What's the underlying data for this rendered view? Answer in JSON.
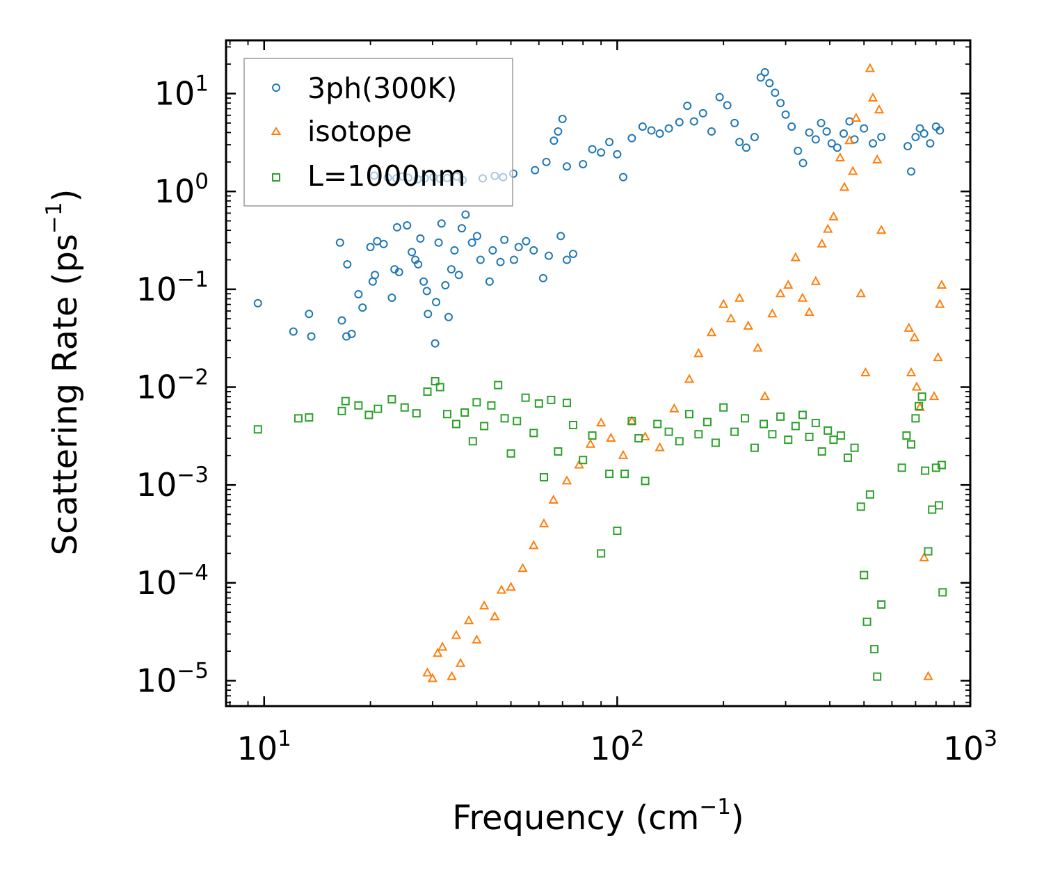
{
  "chart_data": {
    "type": "scatter",
    "xscale": "log",
    "yscale": "log",
    "xlim": [
      7.8,
      1000
    ],
    "ylim": [
      5.5e-06,
      35
    ],
    "xlabel": {
      "text": "Frequency (cm",
      "sup": "−1",
      "close": ")"
    },
    "ylabel": {
      "text": "Scattering Rate (ps",
      "sup": "−1",
      "close": ")"
    },
    "xticks": [
      {
        "value": 10,
        "base": "10",
        "exp": "1"
      },
      {
        "value": 100,
        "base": "10",
        "exp": "2"
      },
      {
        "value": 1000,
        "base": "10",
        "exp": "3"
      }
    ],
    "yticks": [
      {
        "value": 10,
        "base": "10",
        "exp": "1"
      },
      {
        "value": 1,
        "base": "10",
        "exp": "0"
      },
      {
        "value": 0.1,
        "base": "10",
        "exp": "−1"
      },
      {
        "value": 0.01,
        "base": "10",
        "exp": "−2"
      },
      {
        "value": 0.001,
        "base": "10",
        "exp": "−3"
      },
      {
        "value": 0.0001,
        "base": "10",
        "exp": "−4"
      },
      {
        "value": 1e-05,
        "base": "10",
        "exp": "−5"
      }
    ],
    "legend": {
      "position": "upper-left"
    },
    "series": [
      {
        "name": "3ph(300K)",
        "marker": "circle",
        "color": "#1f77b4",
        "points": [
          [
            9.6,
            0.072
          ],
          [
            12.1,
            0.037
          ],
          [
            13.4,
            0.056
          ],
          [
            13.6,
            0.033
          ],
          [
            16.6,
            0.048
          ],
          [
            16.4,
            0.3
          ],
          [
            17.2,
            0.18
          ],
          [
            17.1,
            0.033
          ],
          [
            17.7,
            0.035
          ],
          [
            18.5,
            0.089
          ],
          [
            19.0,
            0.065
          ],
          [
            20.0,
            0.27
          ],
          [
            20.3,
            0.12
          ],
          [
            20.6,
            0.14
          ],
          [
            20.9,
            0.31
          ],
          [
            21.8,
            0.29
          ],
          [
            23.0,
            0.082
          ],
          [
            23.4,
            0.16
          ],
          [
            24.1,
            0.15
          ],
          [
            23.8,
            0.43
          ],
          [
            25.4,
            0.45
          ],
          [
            26.2,
            0.24
          ],
          [
            26.8,
            0.2
          ],
          [
            27.3,
            0.18
          ],
          [
            27.7,
            0.33
          ],
          [
            28.3,
            0.12
          ],
          [
            28.9,
            0.096
          ],
          [
            29.1,
            0.056
          ],
          [
            30.5,
            0.028
          ],
          [
            30.7,
            0.074
          ],
          [
            31.2,
            0.3
          ],
          [
            31.8,
            0.47
          ],
          [
            32.6,
            0.11
          ],
          [
            33.3,
            0.052
          ],
          [
            33.9,
            0.16
          ],
          [
            34.6,
            0.25
          ],
          [
            35.6,
            0.14
          ],
          [
            36.3,
            0.42
          ],
          [
            37.2,
            0.58
          ],
          [
            38.8,
            0.3
          ],
          [
            40.1,
            0.35
          ],
          [
            41.0,
            0.2
          ],
          [
            43.5,
            0.12
          ],
          [
            44.4,
            0.25
          ],
          [
            46.7,
            0.19
          ],
          [
            47.9,
            0.32
          ],
          [
            51.0,
            0.2
          ],
          [
            52.6,
            0.27
          ],
          [
            55.2,
            0.31
          ],
          [
            58.0,
            0.25
          ],
          [
            61.7,
            0.13
          ],
          [
            64.0,
            0.22
          ],
          [
            69.2,
            0.35
          ],
          [
            72.0,
            0.2
          ],
          [
            75.0,
            0.23
          ],
          [
            20.5,
            1.45
          ],
          [
            22.4,
            1.38
          ],
          [
            23.7,
            1.36
          ],
          [
            24.6,
            1.42
          ],
          [
            25.6,
            1.38
          ],
          [
            27.2,
            1.33
          ],
          [
            28.5,
            1.36
          ],
          [
            30.2,
            1.4
          ],
          [
            31.5,
            1.35
          ],
          [
            33.0,
            1.37
          ],
          [
            35.1,
            1.42
          ],
          [
            36.5,
            1.31
          ],
          [
            41.6,
            1.36
          ],
          [
            45.0,
            1.44
          ],
          [
            47.5,
            1.4
          ],
          [
            50.8,
            1.52
          ],
          [
            58.5,
            1.65
          ],
          [
            63.0,
            2.0
          ],
          [
            66.2,
            3.3
          ],
          [
            68.0,
            4.1
          ],
          [
            70.0,
            5.5
          ],
          [
            72.0,
            1.8
          ],
          [
            80.0,
            1.9
          ],
          [
            85.0,
            2.7
          ],
          [
            90.0,
            2.5
          ],
          [
            95.0,
            3.2
          ],
          [
            100.0,
            2.4
          ],
          [
            104.0,
            1.4
          ],
          [
            110.0,
            3.5
          ],
          [
            118.0,
            4.6
          ],
          [
            125.0,
            4.2
          ],
          [
            132.0,
            3.9
          ],
          [
            140.0,
            4.4
          ],
          [
            150.0,
            5.1
          ],
          [
            158.0,
            7.5
          ],
          [
            165.0,
            5.2
          ],
          [
            175.0,
            6.3
          ],
          [
            185.0,
            4.1
          ],
          [
            195.0,
            9.2
          ],
          [
            205.0,
            7.6
          ],
          [
            215.0,
            5.0
          ],
          [
            222.0,
            3.2
          ],
          [
            232.0,
            2.8
          ],
          [
            245.0,
            3.6
          ],
          [
            255.0,
            14.6
          ],
          [
            262.0,
            16.5
          ],
          [
            270.0,
            12.8
          ],
          [
            280.0,
            10.2
          ],
          [
            290.0,
            8.0
          ],
          [
            300.0,
            6.1
          ],
          [
            312.0,
            4.6
          ],
          [
            325.0,
            2.6
          ],
          [
            336.0,
            1.95
          ],
          [
            350.0,
            4.0
          ],
          [
            365.0,
            3.4
          ],
          [
            378.0,
            5.0
          ],
          [
            392.0,
            4.1
          ],
          [
            405.0,
            3.1
          ],
          [
            420.0,
            2.8
          ],
          [
            438.0,
            3.9
          ],
          [
            455.0,
            5.2
          ],
          [
            470.0,
            3.4
          ],
          [
            500.0,
            4.4
          ],
          [
            530.0,
            3.1
          ],
          [
            560.0,
            3.6
          ],
          [
            665.0,
            2.9
          ],
          [
            680.0,
            1.6
          ],
          [
            700.0,
            3.6
          ],
          [
            720.0,
            4.4
          ],
          [
            740.0,
            3.9
          ],
          [
            770.0,
            3.1
          ],
          [
            800.0,
            4.6
          ],
          [
            820.0,
            4.2
          ]
        ]
      },
      {
        "name": "isotope",
        "marker": "triangle",
        "color": "#ff7f0e",
        "points": [
          [
            29.0,
            1.2e-05
          ],
          [
            30.0,
            1.05e-05
          ],
          [
            31.0,
            1.9e-05
          ],
          [
            32.0,
            2.2e-05
          ],
          [
            34.0,
            1.1e-05
          ],
          [
            35.0,
            2.9e-05
          ],
          [
            36.0,
            1.5e-05
          ],
          [
            38.0,
            4.1e-05
          ],
          [
            40.0,
            2.6e-05
          ],
          [
            42.0,
            5.8e-05
          ],
          [
            45.0,
            4.5e-05
          ],
          [
            47.0,
            8.4e-05
          ],
          [
            50.0,
            9e-05
          ],
          [
            54.0,
            0.00014
          ],
          [
            58.0,
            0.00024
          ],
          [
            62.0,
            0.0004
          ],
          [
            66.0,
            0.0007
          ],
          [
            72.0,
            0.0011
          ],
          [
            78.0,
            0.0016
          ],
          [
            84.0,
            0.0026
          ],
          [
            90.0,
            0.0043
          ],
          [
            96.0,
            0.003
          ],
          [
            104.0,
            0.002
          ],
          [
            110.0,
            0.0045
          ],
          [
            120.0,
            0.0031
          ],
          [
            132.0,
            0.0024
          ],
          [
            145.0,
            0.006
          ],
          [
            160.0,
            0.012
          ],
          [
            170.0,
            0.022
          ],
          [
            185.0,
            0.036
          ],
          [
            200.0,
            0.07
          ],
          [
            210.0,
            0.05
          ],
          [
            222.0,
            0.081
          ],
          [
            235.0,
            0.042
          ],
          [
            250.0,
            0.025
          ],
          [
            262.0,
            0.008
          ],
          [
            275.0,
            0.056
          ],
          [
            290.0,
            0.09
          ],
          [
            305.0,
            0.11
          ],
          [
            320.0,
            0.21
          ],
          [
            335.0,
            0.081
          ],
          [
            350.0,
            0.058
          ],
          [
            365.0,
            0.12
          ],
          [
            380.0,
            0.29
          ],
          [
            395.0,
            0.41
          ],
          [
            410.0,
            0.55
          ],
          [
            428.0,
            2.2
          ],
          [
            440.0,
            1.1
          ],
          [
            455.0,
            3.3
          ],
          [
            465.0,
            1.6
          ],
          [
            475.0,
            5.6
          ],
          [
            490.0,
            0.09
          ],
          [
            505.0,
            0.014
          ],
          [
            520.0,
            18.0
          ],
          [
            530.0,
            9.0
          ],
          [
            545.0,
            2.1
          ],
          [
            552.0,
            6.8
          ],
          [
            560.0,
            0.4
          ],
          [
            670.0,
            0.04
          ],
          [
            680.0,
            0.014
          ],
          [
            695.0,
            0.032
          ],
          [
            705.0,
            0.01
          ],
          [
            720.0,
            0.0062
          ],
          [
            740.0,
            0.00018
          ],
          [
            760.0,
            1.1e-05
          ],
          [
            790.0,
            0.008
          ],
          [
            810.0,
            0.02
          ],
          [
            820.0,
            0.07
          ],
          [
            830.0,
            0.11
          ]
        ]
      },
      {
        "name": "L=1000nm",
        "marker": "square",
        "color": "#2ca02c",
        "points": [
          [
            9.6,
            0.0037
          ],
          [
            12.5,
            0.0048
          ],
          [
            13.4,
            0.0049
          ],
          [
            16.6,
            0.0057
          ],
          [
            17.0,
            0.0072
          ],
          [
            18.5,
            0.0065
          ],
          [
            19.8,
            0.0052
          ],
          [
            21.0,
            0.006
          ],
          [
            23.0,
            0.0075
          ],
          [
            25.0,
            0.0062
          ],
          [
            27.0,
            0.0054
          ],
          [
            29.0,
            0.009
          ],
          [
            30.5,
            0.0115
          ],
          [
            31.5,
            0.01
          ],
          [
            33.0,
            0.0053
          ],
          [
            35.0,
            0.0042
          ],
          [
            37.0,
            0.0055
          ],
          [
            39.0,
            0.0028
          ],
          [
            40.0,
            0.007
          ],
          [
            42.0,
            0.004
          ],
          [
            44.0,
            0.0065
          ],
          [
            46.0,
            0.0105
          ],
          [
            48.0,
            0.0048
          ],
          [
            50.0,
            0.0021
          ],
          [
            52.0,
            0.0045
          ],
          [
            55.0,
            0.0078
          ],
          [
            58.0,
            0.0034
          ],
          [
            60.0,
            0.0068
          ],
          [
            62.0,
            0.0012
          ],
          [
            65.0,
            0.0074
          ],
          [
            68.0,
            0.0022
          ],
          [
            72.0,
            0.0069
          ],
          [
            75.0,
            0.0041
          ],
          [
            80.0,
            0.0018
          ],
          [
            85.0,
            0.0032
          ],
          [
            90.0,
            0.0002
          ],
          [
            95.0,
            0.0013
          ],
          [
            100.0,
            0.00034
          ],
          [
            105.0,
            0.0013
          ],
          [
            110.0,
            0.0045
          ],
          [
            115.0,
            0.003
          ],
          [
            120.0,
            0.0011
          ],
          [
            130.0,
            0.0042
          ],
          [
            140.0,
            0.0035
          ],
          [
            150.0,
            0.0028
          ],
          [
            160.0,
            0.0053
          ],
          [
            170.0,
            0.0033
          ],
          [
            180.0,
            0.0044
          ],
          [
            190.0,
            0.0027
          ],
          [
            200.0,
            0.0062
          ],
          [
            215.0,
            0.0035
          ],
          [
            230.0,
            0.0048
          ],
          [
            245.0,
            0.0024
          ],
          [
            260.0,
            0.0042
          ],
          [
            275.0,
            0.0033
          ],
          [
            290.0,
            0.005
          ],
          [
            305.0,
            0.0029
          ],
          [
            320.0,
            0.004
          ],
          [
            335.0,
            0.0052
          ],
          [
            350.0,
            0.0031
          ],
          [
            365.0,
            0.0043
          ],
          [
            380.0,
            0.0022
          ],
          [
            395.0,
            0.0036
          ],
          [
            410.0,
            0.0029
          ],
          [
            430.0,
            0.0032
          ],
          [
            450.0,
            0.0019
          ],
          [
            470.0,
            0.0024
          ],
          [
            490.0,
            0.0006
          ],
          [
            500.0,
            0.00012
          ],
          [
            510.0,
            4e-05
          ],
          [
            520.0,
            0.0008
          ],
          [
            535.0,
            2.1e-05
          ],
          [
            545.0,
            1.1e-05
          ],
          [
            560.0,
            6e-05
          ],
          [
            640.0,
            0.0015
          ],
          [
            660.0,
            0.0032
          ],
          [
            680.0,
            0.0026
          ],
          [
            700.0,
            0.0048
          ],
          [
            715.0,
            0.0064
          ],
          [
            730.0,
            0.008
          ],
          [
            745.0,
            0.0014
          ],
          [
            760.0,
            0.00021
          ],
          [
            780.0,
            0.00056
          ],
          [
            800.0,
            0.0015
          ],
          [
            815.0,
            0.00062
          ],
          [
            830.0,
            0.0016
          ],
          [
            835.0,
            8e-05
          ]
        ]
      }
    ]
  }
}
